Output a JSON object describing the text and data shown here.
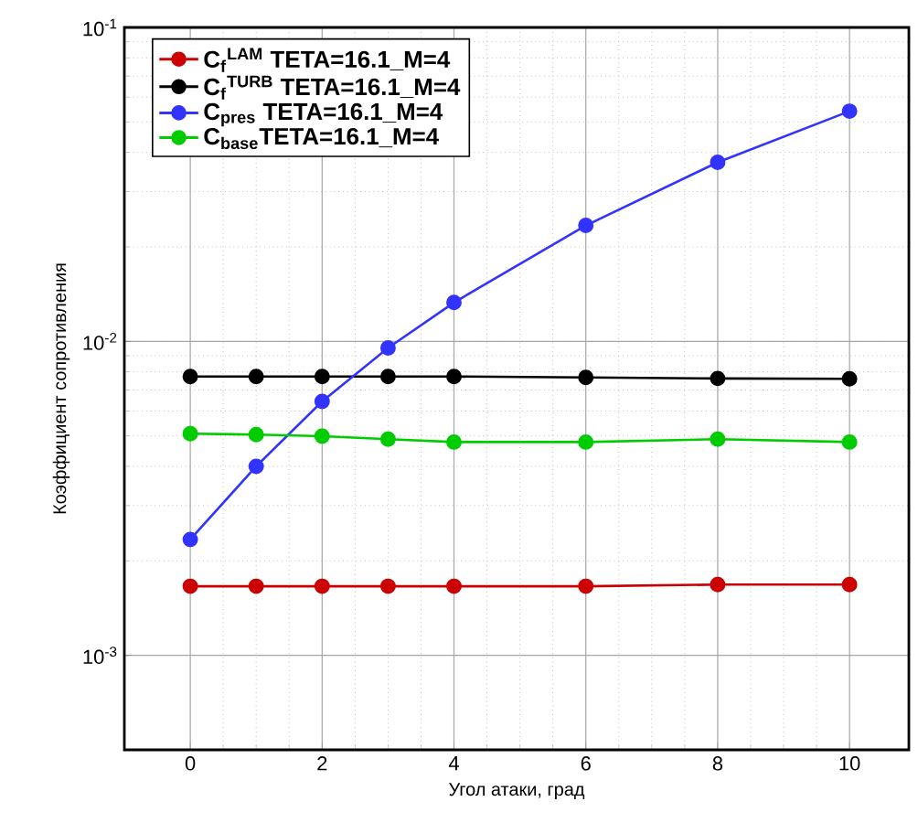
{
  "chart_data": {
    "type": "line",
    "xlabel": "Угол атаки, град",
    "ylabel": "Коэффициент сопротивления",
    "x": [
      0,
      1,
      2,
      3,
      4,
      6,
      8,
      10
    ],
    "series": [
      {
        "name": "C$_{f}$$^{LAM}$ TETA=16.1_M=4",
        "color": "#cc0000",
        "values": [
          0.00166,
          0.00166,
          0.00166,
          0.00166,
          0.00166,
          0.00166,
          0.00168,
          0.00168
        ]
      },
      {
        "name": "C$_{f}$$^{TURB}$ TETA=16.1_M=4",
        "color": "#000000",
        "values": [
          0.00773,
          0.00773,
          0.00773,
          0.00773,
          0.00773,
          0.00768,
          0.00762,
          0.0076
        ]
      },
      {
        "name": "C$_{pres}$ TETA=16.1_M=4",
        "color": "#3333ff",
        "values": [
          0.00234,
          0.004,
          0.00644,
          0.00953,
          0.0133,
          0.0234,
          0.0372,
          0.0541
        ]
      },
      {
        "name": "C$_{base}$TETA=16.1_M=4",
        "color": "#00cc00",
        "values": [
          0.00508,
          0.00505,
          0.00499,
          0.00488,
          0.00478,
          0.00478,
          0.00488,
          0.00478
        ]
      }
    ],
    "xlim": [
      -1,
      10.9
    ],
    "ylim": [
      0.0005,
      0.1
    ],
    "xticks": [
      0,
      2,
      4,
      6,
      8,
      10
    ],
    "yticks": [
      {
        "value": 0.001,
        "label": "10$^{-3}$"
      },
      {
        "value": 0.01,
        "label": "10$^{-2}$"
      },
      {
        "value": 0.1,
        "label": "10$^{-1}$"
      }
    ],
    "log": "y",
    "grid": true,
    "legend": "top left",
    "marker": "circle",
    "line_style": "solid"
  }
}
